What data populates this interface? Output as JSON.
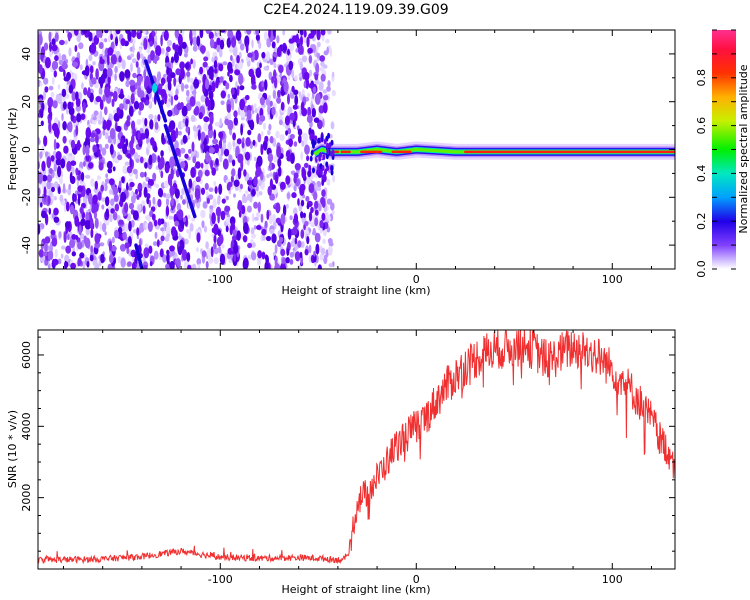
{
  "title": "C2E4.2024.119.09.39.G09",
  "chart_data": [
    {
      "type": "heatmap",
      "xlabel": "Height of straight line (km)",
      "ylabel": "Frequency (Hz)",
      "xlim": [
        -193,
        132
      ],
      "ylim": [
        -50,
        50
      ],
      "x_ticks": [
        -100,
        0,
        100
      ],
      "y_ticks": [
        -40,
        -20,
        0,
        20,
        40
      ],
      "noise_region_x": [
        -193,
        -42
      ],
      "signal_line": {
        "x": [
          -52,
          -48,
          -44,
          -40,
          -30,
          -20,
          -10,
          0,
          20,
          40,
          60,
          80,
          100,
          110,
          132
        ],
        "freq": [
          -2,
          0,
          -1,
          -1,
          -1,
          0,
          -1,
          0,
          -1,
          -1,
          -1,
          -1,
          -1,
          -1,
          -1
        ]
      },
      "streaks": [
        {
          "x": [
            -138,
            -128
          ],
          "freq": [
            37,
            12
          ]
        },
        {
          "x": [
            -128,
            -113
          ],
          "freq": [
            10,
            -28
          ]
        },
        {
          "x": [
            -143,
            -140
          ],
          "freq": [
            -40,
            -50
          ]
        }
      ],
      "colorbar": {
        "label": "Normalized spectral amplitude",
        "ticks": [
          0.0,
          0.2,
          0.4,
          0.6,
          0.8
        ],
        "range": [
          0,
          1
        ],
        "colors": [
          "#ffffff",
          "#a070ff",
          "#6a0bef",
          "#1e00e6",
          "#00e0e0",
          "#00f000",
          "#e8e800",
          "#ff6000",
          "#ff0000",
          "#ff2a8a"
        ]
      }
    },
    {
      "type": "line",
      "xlabel": "Height of straight line (km)",
      "ylabel": "SNR (10 * v/v)",
      "xlim": [
        -193,
        132
      ],
      "ylim": [
        0,
        6700
      ],
      "x_ticks": [
        -100,
        0,
        100
      ],
      "y_ticks": [
        2000,
        4000,
        6000
      ],
      "color": "#f03030",
      "series": [
        {
          "x": [
            -193,
            -160,
            -140,
            -120,
            -100,
            -80,
            -60,
            -50,
            -40,
            -35,
            -30,
            -25,
            -20,
            -15,
            -10,
            -5,
            0,
            5,
            10,
            15,
            20,
            25,
            30,
            35,
            40,
            45,
            50,
            55,
            60,
            65,
            70,
            75,
            80,
            85,
            90,
            95,
            100,
            105,
            110,
            115,
            120,
            125,
            132
          ],
          "values": [
            250,
            280,
            350,
            500,
            330,
            300,
            320,
            300,
            260,
            280,
            1900,
            2150,
            2550,
            3000,
            3500,
            3750,
            4000,
            4250,
            4700,
            5100,
            5400,
            5700,
            5900,
            6050,
            6150,
            6200,
            6250,
            6300,
            6150,
            5900,
            5900,
            6100,
            6200,
            6150,
            6050,
            5850,
            5600,
            5300,
            5000,
            4600,
            4200,
            3600,
            3000
          ]
        }
      ]
    }
  ]
}
